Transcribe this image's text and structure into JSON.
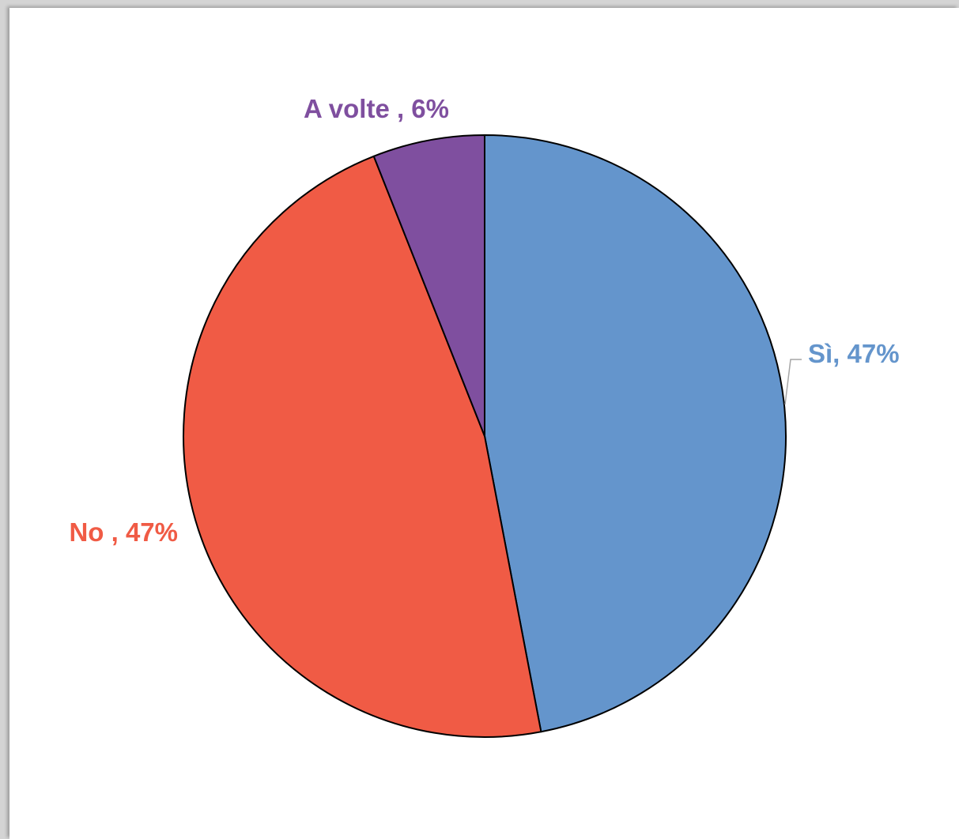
{
  "chart_data": {
    "type": "pie",
    "title": "",
    "slices": [
      {
        "label": "Sì",
        "value": 47,
        "display": "Sì, 47%",
        "color": "#6495cc"
      },
      {
        "label": "No",
        "value": 47,
        "display": "No , 47%",
        "color": "#f05b45"
      },
      {
        "label": "A volte",
        "value": 6,
        "display": "A volte , 6%",
        "color": "#7f4f9f"
      }
    ],
    "start_angle": "12 o'clock",
    "direction": "clockwise",
    "legend": "none",
    "data_labels": "outside"
  }
}
